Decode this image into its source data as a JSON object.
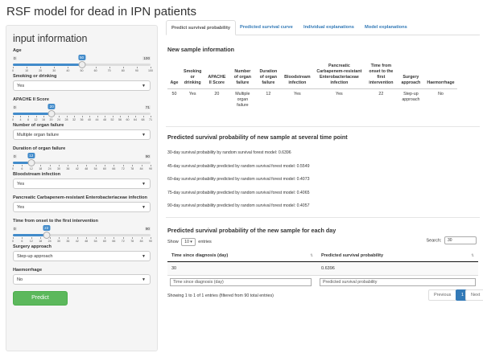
{
  "app": {
    "title": "RSF model for dead in IPN patients"
  },
  "sidebar": {
    "heading": "input information",
    "age": {
      "label": "Age",
      "min": "0",
      "max": "100",
      "value": "50",
      "fraction": 0.5,
      "ticks": [
        "0",
        "10",
        "20",
        "30",
        "40",
        "50",
        "60",
        "70",
        "80",
        "90",
        "100"
      ]
    },
    "smoking": {
      "label": "Smoking or drinking",
      "value": "Yes"
    },
    "apache": {
      "label": "APACHE II Score",
      "min": "0",
      "max": "71",
      "value": "20",
      "fraction": 0.282,
      "ticks": [
        "0",
        "4",
        "8",
        "12",
        "16",
        "20",
        "24",
        "28",
        "32",
        "36",
        "40",
        "44",
        "48",
        "52",
        "56",
        "60",
        "64",
        "68",
        "71"
      ]
    },
    "organ_failure": {
      "label": "Number of organ failure",
      "value": "Multiple organ failure"
    },
    "duration": {
      "label": "Duration of organ failure",
      "min": "0",
      "max": "90",
      "value": "12",
      "fraction": 0.133,
      "ticks": [
        "0",
        "6",
        "12",
        "18",
        "24",
        "30",
        "36",
        "42",
        "48",
        "54",
        "60",
        "66",
        "72",
        "78",
        "84",
        "90"
      ]
    },
    "bloodstream": {
      "label": "Bloodstream infection",
      "value": "Yes"
    },
    "pcre": {
      "label": "Pancreatic Carbapenem-resistant Enterobacteriaceae infection",
      "value": "Yes"
    },
    "time_onset": {
      "label": "Time from onset to the first intervention",
      "min": "0",
      "max": "90",
      "value": "22",
      "fraction": 0.244,
      "ticks": [
        "0",
        "6",
        "12",
        "18",
        "24",
        "30",
        "36",
        "42",
        "48",
        "54",
        "60",
        "66",
        "72",
        "78",
        "84",
        "90"
      ]
    },
    "surgery": {
      "label": "Surgery approach",
      "value": "Step-up approach"
    },
    "haemorrhage": {
      "label": "Haemorrhage",
      "value": "No"
    },
    "predict_label": "Predict"
  },
  "tabs": [
    "Predict survival probability",
    "Predicted survival curve",
    "Individual explanations",
    "Model explanations"
  ],
  "new_sample": {
    "heading": "New sample information",
    "headers": [
      "Age",
      "Smoking or drinking",
      "APACHE II Score",
      "Number of organ failure",
      "Duration of organ failure",
      "Bloodstream infection",
      "Pancreatic Carbapenem-resistant Enterobacteriaceae infection",
      "Time from onset to the first intervention",
      "Surgery approach",
      "Haemorrhage"
    ],
    "values": [
      "50",
      "Yes",
      "20",
      "Multiple organ failure",
      "12",
      "Yes",
      "Yes",
      "22",
      "Step-up approach",
      "No"
    ]
  },
  "time_points": {
    "heading": "Predicted survival probability of new sample at several time point",
    "lines": [
      "30-day survival probability by random survival forest model: 0.6396",
      "45-day survival probability predicted by random survival forest model: 0.5549",
      "60-day survival probability predicted by random survival forest model: 0.4073",
      "75-day survival probability predicted by random survival forest model: 0.4065",
      "90-day survival probability predicted by random survival forest model: 0.4057"
    ]
  },
  "each_day": {
    "heading": "Predicted survival probability of the new sample for each day",
    "show_label": "Show",
    "entries_value": "10",
    "entries_label": "entries",
    "search_label": "Search:",
    "search_value": "30",
    "columns": [
      "Time since diagnosis (day)",
      "Predicted survival probability"
    ],
    "rows": [
      [
        "30",
        "0.6396"
      ]
    ],
    "filters": [
      "Time since diagnosis (day)",
      "Predicted survival probability"
    ],
    "info": "Showing 1 to 1 of 1 entries (filtered from 90 total entries)",
    "previous": "Previous",
    "page": "1",
    "next": "Next"
  }
}
